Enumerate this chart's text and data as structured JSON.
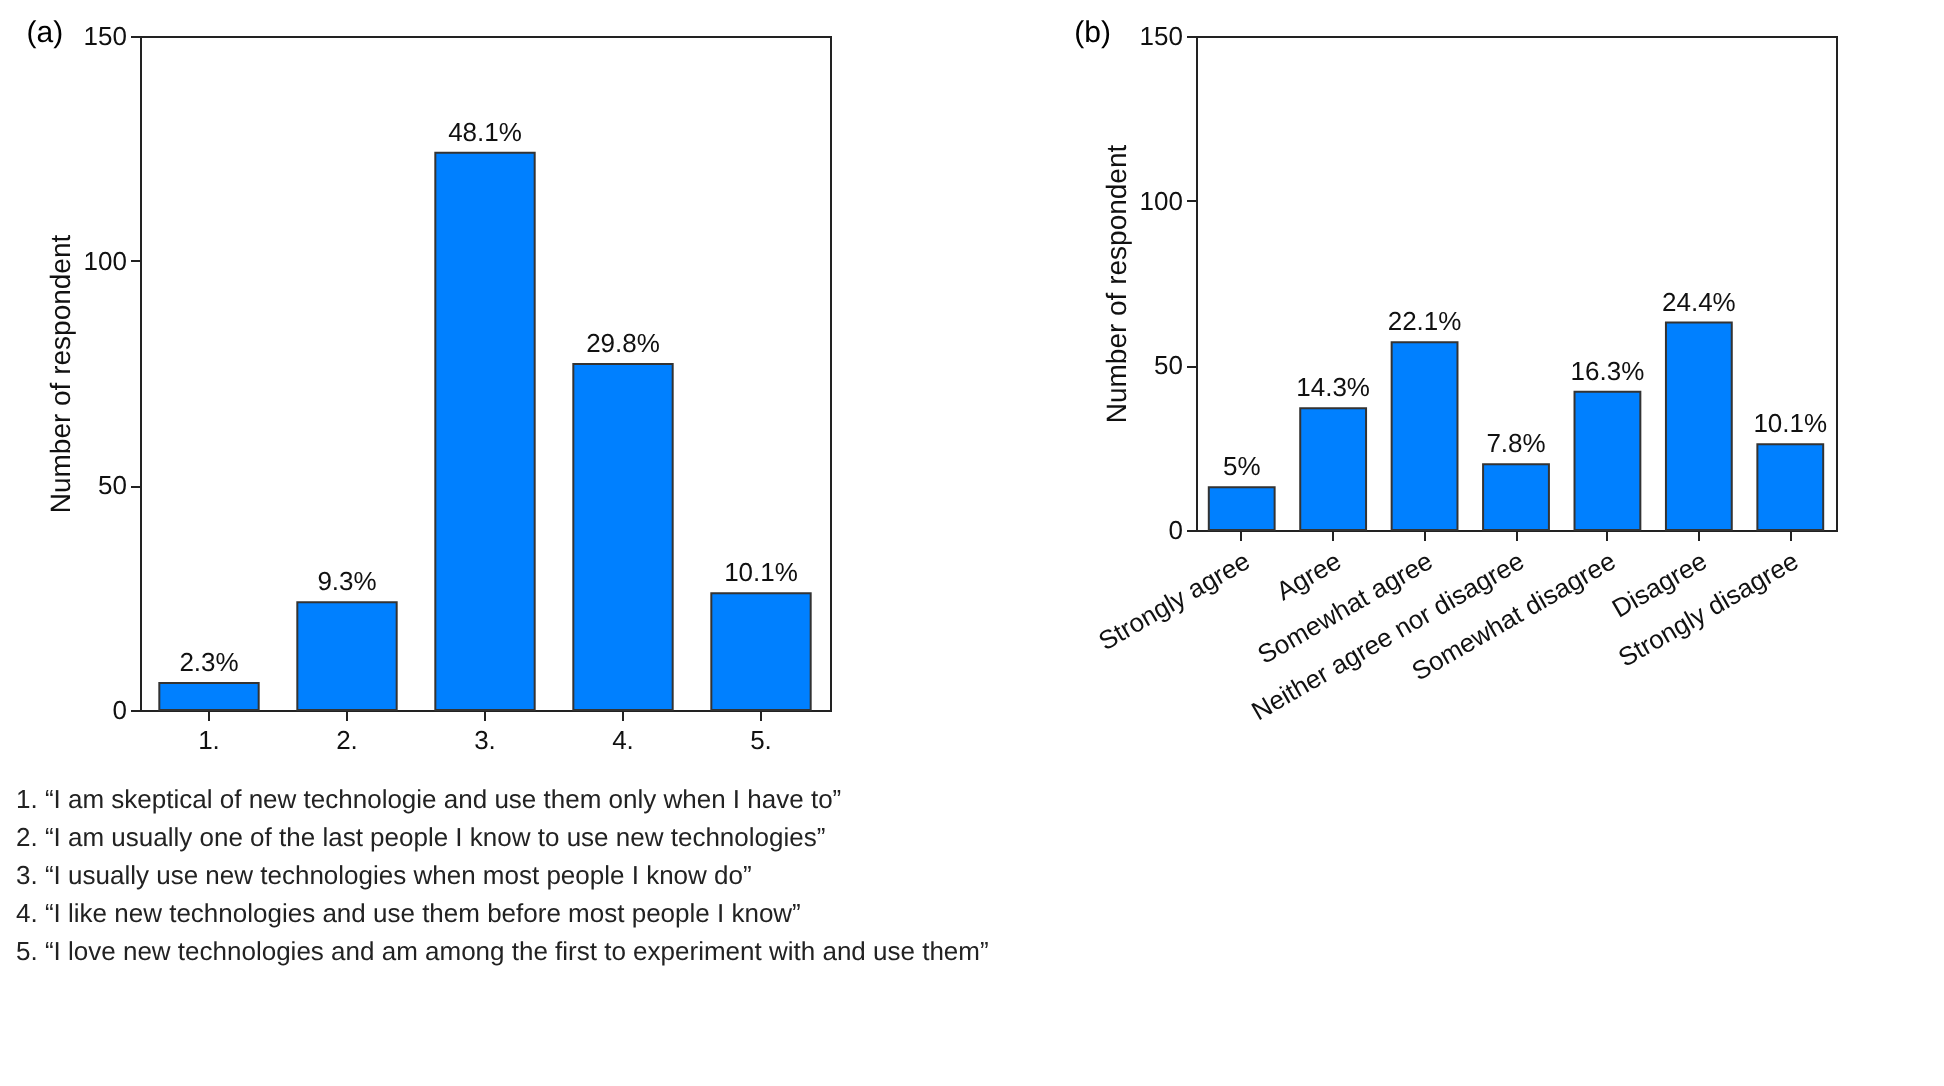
{
  "chart_data": [
    {
      "type": "bar",
      "title": "(a)",
      "ylabel": "Number of respondent",
      "categories": [
        "1.",
        "2.",
        "3.",
        "4.",
        "5."
      ],
      "values": [
        6,
        24,
        124,
        77,
        26
      ],
      "color": "#0080ff",
      "ylim": [
        0,
        150
      ],
      "yticks": [
        0,
        50,
        100,
        150
      ],
      "grid": false,
      "annotations": [
        {
          "text": "2.3%",
          "x": "1.",
          "y": 6
        },
        {
          "text": "9.3%",
          "x": "2.",
          "y": 24
        },
        {
          "text": "48.1%",
          "x": "3.",
          "y": 124
        },
        {
          "text": "29.8%",
          "x": "4.",
          "y": 77
        },
        {
          "text": "10.1%",
          "x": "5.",
          "y": 26
        },
        "1. “I am skeptical of new technologie and use them only when I have to”",
        "2. “I am usually one of the last people I know to use new technologies”",
        "3. “I usually use new technologies when most people I know do”",
        "4. “I like new technologies and use them before most people I know”",
        "5. “I love new technologies and am among the first to experiment with and use them”"
      ]
    },
    {
      "type": "bar",
      "title": "(b)",
      "ylabel": "Number of respondent",
      "categories": [
        "Strongly agree",
        "Agree",
        "Somewhat agree",
        "Neither agree nor disagree",
        "Somewhat disagree",
        "Disagree",
        "Strongly disagree"
      ],
      "values": [
        13,
        37,
        57,
        20,
        42,
        63,
        26
      ],
      "color": "#0080ff",
      "ylim": [
        0,
        150
      ],
      "yticks": [
        0,
        50,
        100,
        150
      ],
      "grid": false,
      "annotations": [
        {
          "text": "5%",
          "x": "Strongly agree",
          "y": 13
        },
        {
          "text": "14.3%",
          "x": "Agree",
          "y": 37
        },
        {
          "text": "22.1%",
          "x": "Somewhat agree",
          "y": 57
        },
        {
          "text": "7.8%",
          "x": "Neither agree nor disagree",
          "y": 20
        },
        {
          "text": "16.3%",
          "x": "Somewhat disagree",
          "y": 42
        },
        {
          "text": "24.4%",
          "x": "Disagree",
          "y": 63
        },
        {
          "text": "10.1%",
          "x": "Strongly disagree",
          "y": 26
        }
      ]
    }
  ]
}
